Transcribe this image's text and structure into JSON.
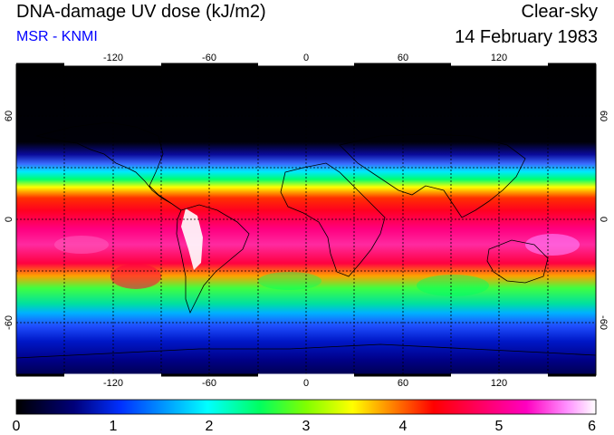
{
  "header": {
    "title": "DNA-damage UV dose (kJ/m2)",
    "source": "MSR - KNMI",
    "sky_condition": "Clear-sky",
    "date": "14 February 1983"
  },
  "map": {
    "lon_ticks": [
      "-120",
      "-60",
      "0",
      "60",
      "120"
    ],
    "lat_ticks": [
      "60",
      "0",
      "-60"
    ],
    "lon_range": [
      -180,
      180
    ],
    "lat_range": [
      -90,
      90
    ]
  },
  "colorbar": {
    "ticks": [
      "0",
      "1",
      "2",
      "3",
      "4",
      "5",
      "6"
    ],
    "range": [
      0,
      6
    ],
    "colors": [
      "#000000",
      "#00007f",
      "#0050ff",
      "#00ffff",
      "#00ff40",
      "#ffff00",
      "#ff0000",
      "#ff0080",
      "#ff80ff",
      "#ffffff"
    ]
  }
}
